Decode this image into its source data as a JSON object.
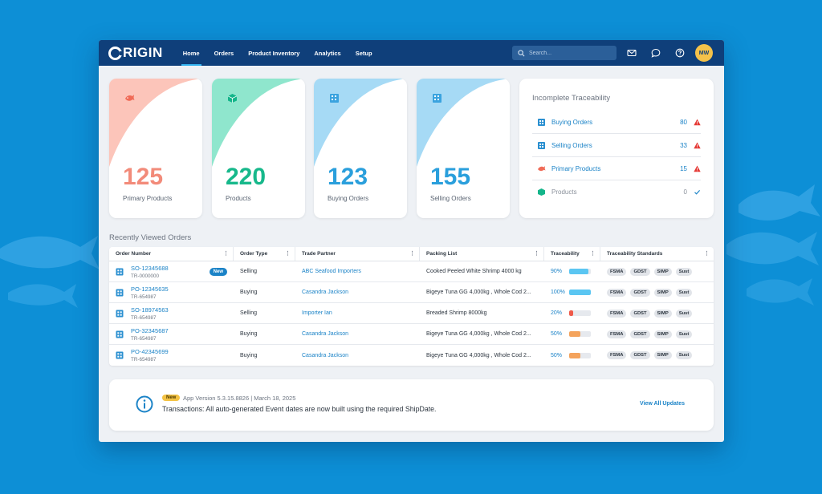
{
  "app": {
    "logo_text": "RIGIN",
    "brand_color": "#0f3f7a",
    "accent_color": "#1b83c7"
  },
  "nav": [
    {
      "label": "Home",
      "active": true
    },
    {
      "label": "Orders"
    },
    {
      "label": "Product Inventory"
    },
    {
      "label": "Analytics"
    },
    {
      "label": "Setup"
    }
  ],
  "search": {
    "placeholder": "Search..."
  },
  "header_icons": [
    "mail-icon",
    "chat-icon",
    "help-icon"
  ],
  "user": {
    "initials": "MW"
  },
  "kpis": [
    {
      "value": "125",
      "label": "Primary Products",
      "color": "#f28b7a",
      "icon": "fish-icon"
    },
    {
      "value": "220",
      "label": "Products",
      "color": "#1fc79a",
      "icon": "box-icon"
    },
    {
      "value": "123",
      "label": "Buying Orders",
      "color": "#2a9fdc",
      "icon": "building-icon"
    },
    {
      "value": "155",
      "label": "Selling Orders",
      "color": "#2a9fdc",
      "icon": "building-icon"
    }
  ],
  "traceability": {
    "title": "Incomplete Traceability",
    "rows": [
      {
        "label": "Buying Orders",
        "count": "80",
        "status": "warning"
      },
      {
        "label": "Selling Orders",
        "count": "33",
        "status": "warning"
      },
      {
        "label": "Primary Products",
        "count": "15",
        "status": "warning"
      },
      {
        "label": "Products",
        "count": "0",
        "status": "ok"
      }
    ]
  },
  "recent": {
    "title": "Recently Viewed Orders",
    "columns": [
      "Order Number",
      "Order Type",
      "Trade Partner",
      "Packing List",
      "Traceability",
      "Traceability Standards"
    ],
    "rows": [
      {
        "order": "SO-12345688",
        "tr": "TR-0000000",
        "is_new": true,
        "new_label": "New",
        "type": "Selling",
        "partner": "ABC Seafood Importers",
        "packing": "Cooked Peeled White Shrimp 4000 kg",
        "pct": 90,
        "pct_label": "90%"
      },
      {
        "order": "PO-12345635",
        "tr": "TR-654987",
        "type": "Buying",
        "partner": "Casandra Jackson",
        "packing": "Bigeye Tuna GG 4,000kg , Whole Cod 2...",
        "pct": 100,
        "pct_label": "100%"
      },
      {
        "order": "SO-18974563",
        "tr": "TR-654987",
        "type": "Selling",
        "partner": "Importer Ian",
        "packing": "Breaded Shrimp 8000kg",
        "pct": 20,
        "pct_label": "20%"
      },
      {
        "order": "PO-32345687",
        "tr": "TR-654987",
        "type": "Buying",
        "partner": "Casandra Jackson",
        "packing": "Bigeye Tuna GG 4,000kg , Whole Cod 2...",
        "pct": 50,
        "pct_label": "50%"
      },
      {
        "order": "PO-42345699",
        "tr": "TR-654987",
        "type": "Buying",
        "partner": "Casandra Jackson",
        "packing": "Bigeye Tuna GG 4,000kg , Whole Cod 2...",
        "pct": 50,
        "pct_label": "50%"
      }
    ],
    "standards": [
      "FSMA",
      "GDST",
      "SIMP",
      "Sust"
    ]
  },
  "update": {
    "badge": "New",
    "version": "App Version 5.3.15.8826 | March 18, 2025",
    "message": "Transactions: All auto-generated Event dates are now built using the required ShipDate.",
    "link": "View All Updates"
  }
}
